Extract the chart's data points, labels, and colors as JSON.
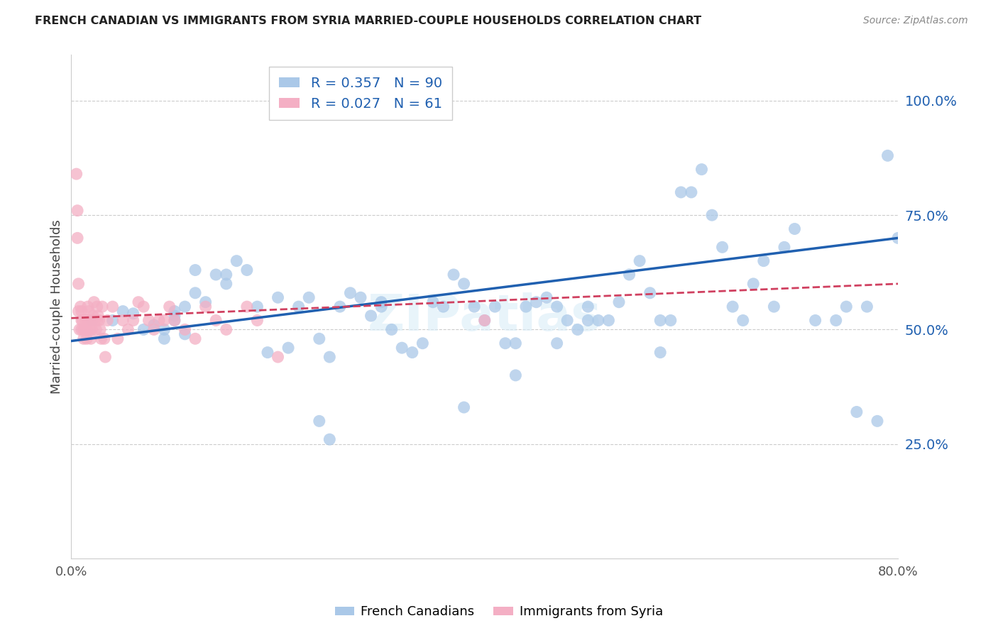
{
  "title": "FRENCH CANADIAN VS IMMIGRANTS FROM SYRIA MARRIED-COUPLE HOUSEHOLDS CORRELATION CHART",
  "source": "Source: ZipAtlas.com",
  "ylabel": "Married-couple Households",
  "xlim": [
    0.0,
    0.8
  ],
  "ylim": [
    0.0,
    1.1
  ],
  "yticks": [
    0.25,
    0.5,
    0.75,
    1.0
  ],
  "ytick_labels": [
    "25.0%",
    "50.0%",
    "75.0%",
    "100.0%"
  ],
  "xticks": [
    0.0,
    0.1,
    0.2,
    0.3,
    0.4,
    0.5,
    0.6,
    0.7,
    0.8
  ],
  "xtick_labels": [
    "0.0%",
    "",
    "",
    "",
    "",
    "",
    "",
    "",
    "80.0%"
  ],
  "blue_R": 0.357,
  "blue_N": 90,
  "pink_R": 0.027,
  "pink_N": 61,
  "blue_color": "#aac8e8",
  "blue_line_color": "#2060b0",
  "pink_color": "#f4afc4",
  "pink_line_color": "#d04060",
  "watermark": "ZIPatlas",
  "blue_scatter_x": [
    0.02,
    0.04,
    0.05,
    0.06,
    0.07,
    0.08,
    0.09,
    0.09,
    0.1,
    0.1,
    0.1,
    0.11,
    0.11,
    0.12,
    0.12,
    0.13,
    0.14,
    0.15,
    0.15,
    0.16,
    0.17,
    0.18,
    0.19,
    0.2,
    0.21,
    0.22,
    0.23,
    0.24,
    0.25,
    0.26,
    0.27,
    0.28,
    0.29,
    0.3,
    0.3,
    0.31,
    0.32,
    0.33,
    0.34,
    0.35,
    0.36,
    0.37,
    0.38,
    0.39,
    0.4,
    0.41,
    0.42,
    0.43,
    0.44,
    0.45,
    0.46,
    0.47,
    0.48,
    0.49,
    0.5,
    0.51,
    0.52,
    0.53,
    0.54,
    0.55,
    0.56,
    0.57,
    0.58,
    0.59,
    0.6,
    0.61,
    0.62,
    0.63,
    0.64,
    0.65,
    0.66,
    0.67,
    0.68,
    0.69,
    0.7,
    0.72,
    0.74,
    0.75,
    0.76,
    0.77,
    0.78,
    0.79,
    0.57,
    0.43,
    0.47,
    0.5,
    0.38,
    0.24,
    0.25,
    0.8
  ],
  "blue_scatter_y": [
    0.52,
    0.52,
    0.54,
    0.535,
    0.5,
    0.51,
    0.48,
    0.5,
    0.54,
    0.52,
    0.53,
    0.49,
    0.55,
    0.58,
    0.63,
    0.56,
    0.62,
    0.6,
    0.62,
    0.65,
    0.63,
    0.55,
    0.45,
    0.57,
    0.46,
    0.55,
    0.57,
    0.48,
    0.44,
    0.55,
    0.58,
    0.57,
    0.53,
    0.55,
    0.56,
    0.5,
    0.46,
    0.45,
    0.47,
    0.56,
    0.55,
    0.62,
    0.6,
    0.55,
    0.52,
    0.55,
    0.47,
    0.47,
    0.55,
    0.56,
    0.57,
    0.55,
    0.52,
    0.5,
    0.52,
    0.52,
    0.52,
    0.56,
    0.62,
    0.65,
    0.58,
    0.45,
    0.52,
    0.8,
    0.8,
    0.85,
    0.75,
    0.68,
    0.55,
    0.52,
    0.6,
    0.65,
    0.55,
    0.68,
    0.72,
    0.52,
    0.52,
    0.55,
    0.32,
    0.55,
    0.3,
    0.88,
    0.52,
    0.4,
    0.47,
    0.55,
    0.33,
    0.3,
    0.26,
    0.7
  ],
  "pink_scatter_x": [
    0.005,
    0.006,
    0.006,
    0.007,
    0.007,
    0.008,
    0.009,
    0.01,
    0.01,
    0.01,
    0.011,
    0.012,
    0.012,
    0.013,
    0.014,
    0.015,
    0.015,
    0.016,
    0.016,
    0.017,
    0.018,
    0.018,
    0.019,
    0.02,
    0.02,
    0.021,
    0.022,
    0.023,
    0.024,
    0.025,
    0.025,
    0.026,
    0.027,
    0.028,
    0.029,
    0.03,
    0.032,
    0.033,
    0.035,
    0.04,
    0.045,
    0.05,
    0.055,
    0.06,
    0.065,
    0.07,
    0.075,
    0.08,
    0.085,
    0.09,
    0.095,
    0.1,
    0.11,
    0.12,
    0.13,
    0.14,
    0.15,
    0.17,
    0.18,
    0.2,
    0.4
  ],
  "pink_scatter_y": [
    0.84,
    0.76,
    0.7,
    0.6,
    0.54,
    0.5,
    0.55,
    0.54,
    0.52,
    0.5,
    0.52,
    0.5,
    0.48,
    0.5,
    0.52,
    0.5,
    0.48,
    0.52,
    0.55,
    0.54,
    0.5,
    0.52,
    0.48,
    0.52,
    0.5,
    0.53,
    0.56,
    0.52,
    0.5,
    0.55,
    0.52,
    0.53,
    0.52,
    0.5,
    0.48,
    0.55,
    0.48,
    0.44,
    0.52,
    0.55,
    0.48,
    0.52,
    0.5,
    0.52,
    0.56,
    0.55,
    0.52,
    0.5,
    0.52,
    0.52,
    0.55,
    0.52,
    0.5,
    0.48,
    0.55,
    0.52,
    0.5,
    0.55,
    0.52,
    0.44,
    0.52
  ],
  "blue_line_x0": 0.0,
  "blue_line_y0": 0.475,
  "blue_line_x1": 0.8,
  "blue_line_y1": 0.7,
  "pink_line_x0": 0.0,
  "pink_line_y0": 0.525,
  "pink_line_x1": 0.8,
  "pink_line_y1": 0.6
}
